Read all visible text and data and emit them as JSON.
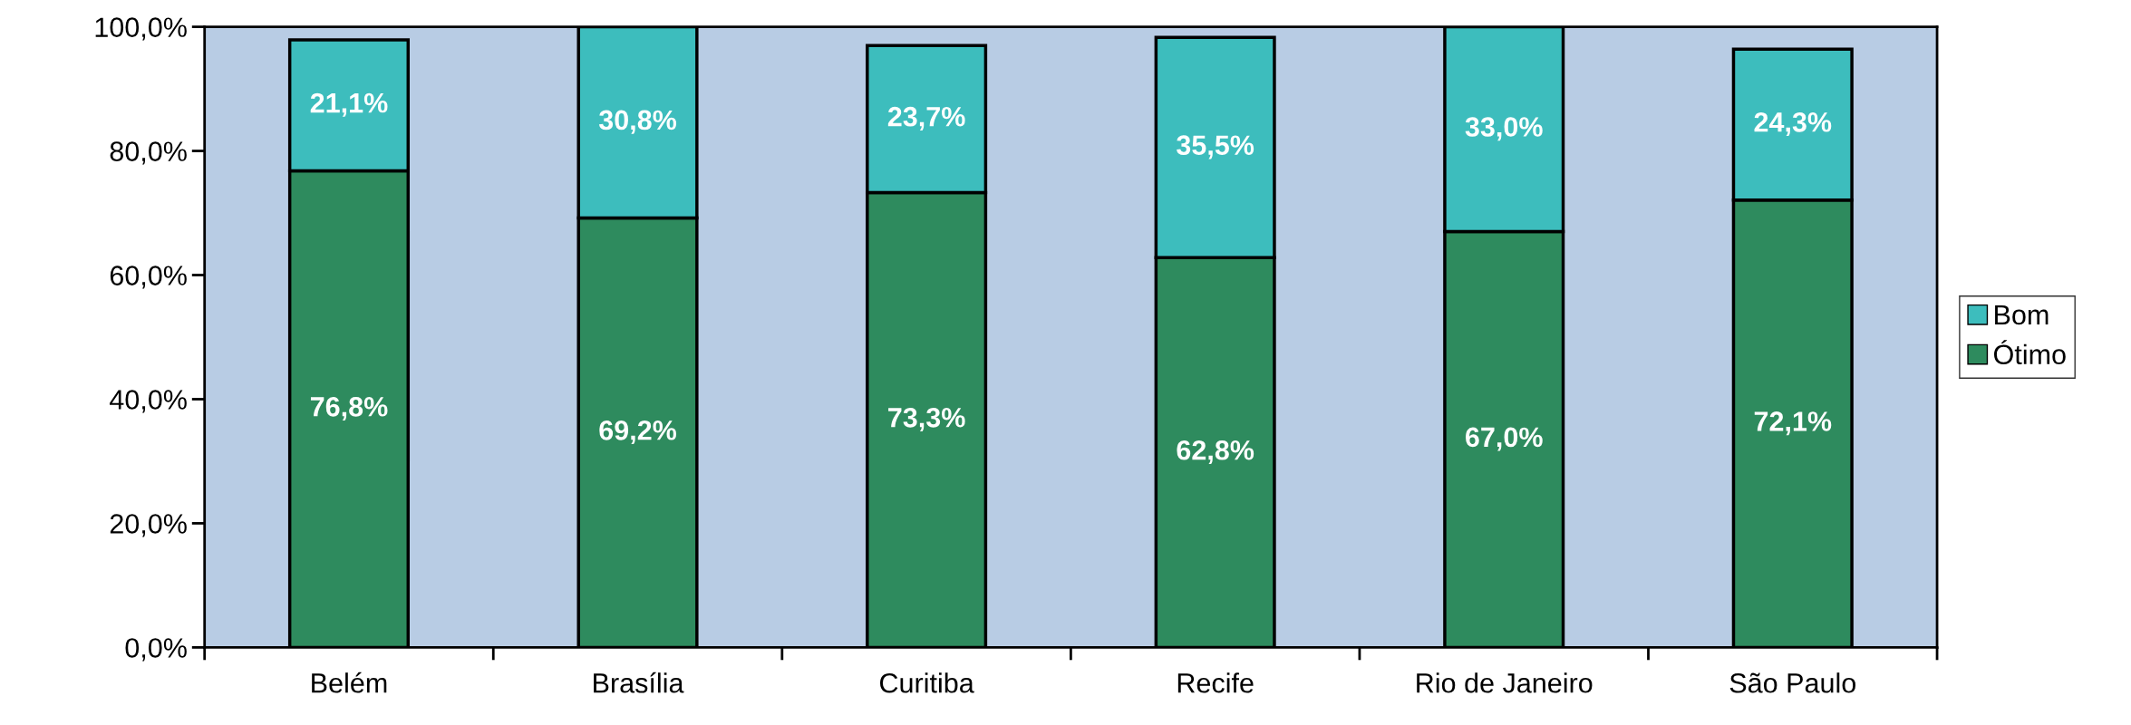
{
  "chart_data": {
    "type": "bar",
    "stacked": true,
    "categories": [
      "Belém",
      "Brasília",
      "Curitiba",
      "Recife",
      "Rio de Janeiro",
      "São Paulo"
    ],
    "series": [
      {
        "name": "Ótimo",
        "color": "#2e8b5e",
        "values": [
          76.8,
          69.2,
          73.3,
          62.8,
          67.0,
          72.1
        ],
        "value_labels": [
          "76,8%",
          "69,2%",
          "73,3%",
          "62,8%",
          "67,0%",
          "72,1%"
        ]
      },
      {
        "name": "Bom",
        "color": "#3dbdbd",
        "values": [
          21.1,
          30.8,
          23.7,
          35.5,
          33.0,
          24.3
        ],
        "value_labels": [
          "21,1%",
          "30,8%",
          "23,7%",
          "35,5%",
          "33,0%",
          "24,3%"
        ]
      }
    ],
    "ylim": [
      0,
      100
    ],
    "yticks": [
      {
        "value": 0,
        "label": "0,0%"
      },
      {
        "value": 20,
        "label": "20,0%"
      },
      {
        "value": 40,
        "label": "40,0%"
      },
      {
        "value": 60,
        "label": "60,0%"
      },
      {
        "value": 80,
        "label": "80,0%"
      },
      {
        "value": 100,
        "label": "100,0%"
      }
    ],
    "grid": false,
    "legend": "right"
  }
}
